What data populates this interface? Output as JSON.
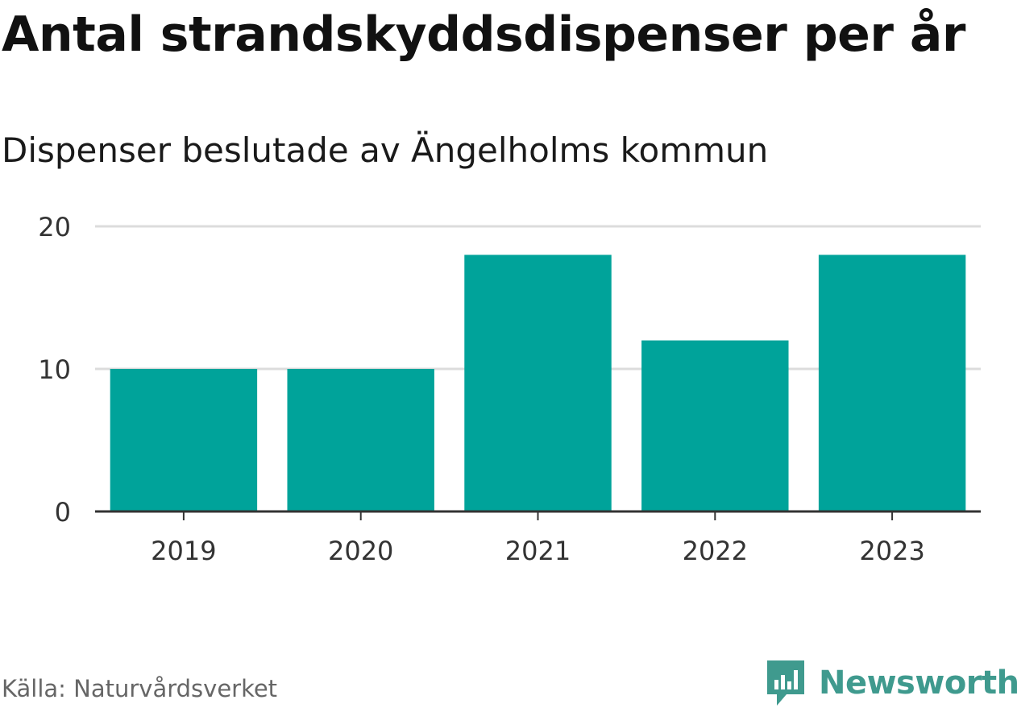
{
  "chart_data": {
    "type": "bar",
    "title": "Antal strandskyddsdispenser per år",
    "subtitle": "Dispenser beslutade av Ängelholms kommun",
    "categories": [
      "2019",
      "2020",
      "2021",
      "2022",
      "2023"
    ],
    "values": [
      10,
      10,
      18,
      12,
      18
    ],
    "yticks": [
      0,
      10,
      20
    ],
    "ylim": [
      0,
      20
    ],
    "xlabel": "",
    "ylabel": "",
    "grid": true,
    "bar_color": "#00a39a"
  },
  "footer": {
    "source": "Källa: Naturvårdsverket",
    "brand": "Newsworthy",
    "brand_color": "#3f9a8e"
  }
}
